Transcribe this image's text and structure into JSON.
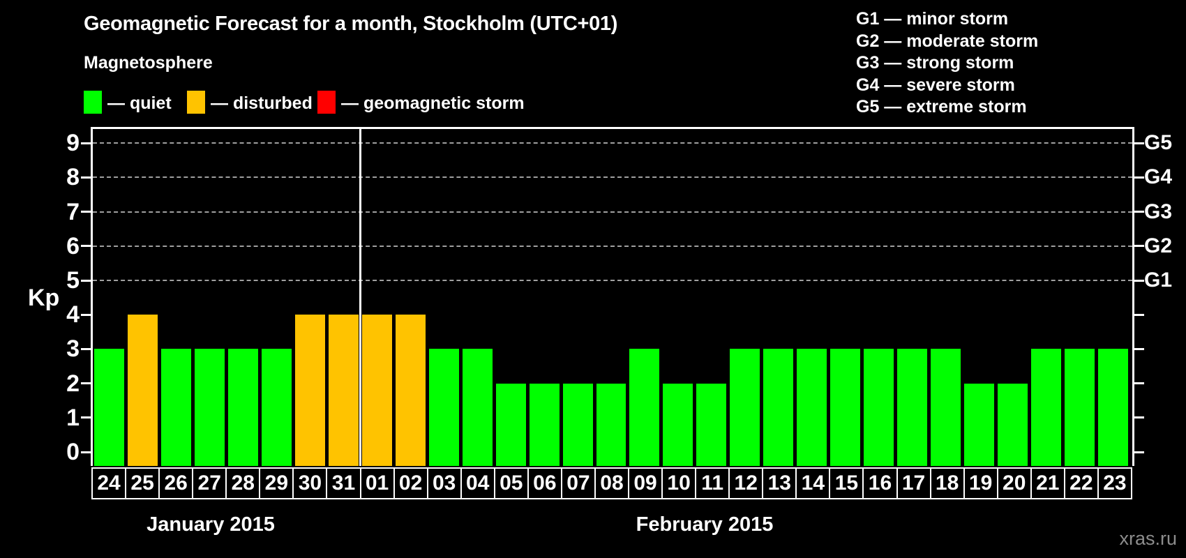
{
  "title": "Geomagnetic Forecast for a month, Stockholm (UTC+01)",
  "subtitle": "Magnetosphere",
  "legend": {
    "items": [
      {
        "name": "quiet",
        "label": "— quiet",
        "color": "#00ff00"
      },
      {
        "name": "disturbed",
        "label": "— disturbed",
        "color": "#ffc300"
      },
      {
        "name": "storm",
        "label": "— geomagnetic storm",
        "color": "#ff0000"
      }
    ]
  },
  "g_legend_lines": [
    "G1 — minor storm",
    "G2 — moderate storm",
    "G3 — strong storm",
    "G4 — severe storm",
    "G5 — extreme storm"
  ],
  "axes": {
    "y_label": "Kp",
    "y_ticks": [
      0,
      1,
      2,
      3,
      4,
      5,
      6,
      7,
      8,
      9
    ],
    "right_scale": [
      {
        "label": "G1",
        "kp": 5
      },
      {
        "label": "G2",
        "kp": 6
      },
      {
        "label": "G3",
        "kp": 7
      },
      {
        "label": "G4",
        "kp": 8
      },
      {
        "label": "G5",
        "kp": 9
      }
    ]
  },
  "months": [
    "January 2015",
    "February 2015"
  ],
  "watermark": "xras.ru",
  "chart_data": {
    "type": "bar",
    "title": "Geomagnetic Forecast for a month, Stockholm (UTC+01)",
    "ylabel": "Kp",
    "ylim": [
      0,
      9
    ],
    "gridlines_at_kp": [
      5,
      6,
      7,
      8,
      9
    ],
    "grid": "dashed horizontal at G-storm levels only",
    "legend_position": "top",
    "month_boundary_after_index": 8,
    "categories": [
      "24",
      "25",
      "26",
      "27",
      "28",
      "29",
      "30",
      "31",
      "01",
      "02",
      "03",
      "04",
      "05",
      "06",
      "07",
      "08",
      "09",
      "10",
      "11",
      "12",
      "13",
      "14",
      "15",
      "16",
      "17",
      "18",
      "19",
      "20",
      "21",
      "22",
      "23"
    ],
    "values": [
      3,
      4,
      3,
      3,
      3,
      3,
      4,
      4,
      4,
      4,
      3,
      3,
      2,
      2,
      2,
      2,
      3,
      2,
      2,
      3,
      3,
      3,
      3,
      3,
      3,
      3,
      2,
      2,
      3,
      3,
      3
    ],
    "statuses": [
      "quiet",
      "disturbed",
      "quiet",
      "quiet",
      "quiet",
      "quiet",
      "disturbed",
      "disturbed",
      "disturbed",
      "disturbed",
      "quiet",
      "quiet",
      "quiet",
      "quiet",
      "quiet",
      "quiet",
      "quiet",
      "quiet",
      "quiet",
      "quiet",
      "quiet",
      "quiet",
      "quiet",
      "quiet",
      "quiet",
      "quiet",
      "quiet",
      "quiet",
      "quiet",
      "quiet",
      "quiet"
    ],
    "status_colors": {
      "quiet": "#00ff00",
      "disturbed": "#ffc300",
      "storm": "#ff0000"
    }
  }
}
